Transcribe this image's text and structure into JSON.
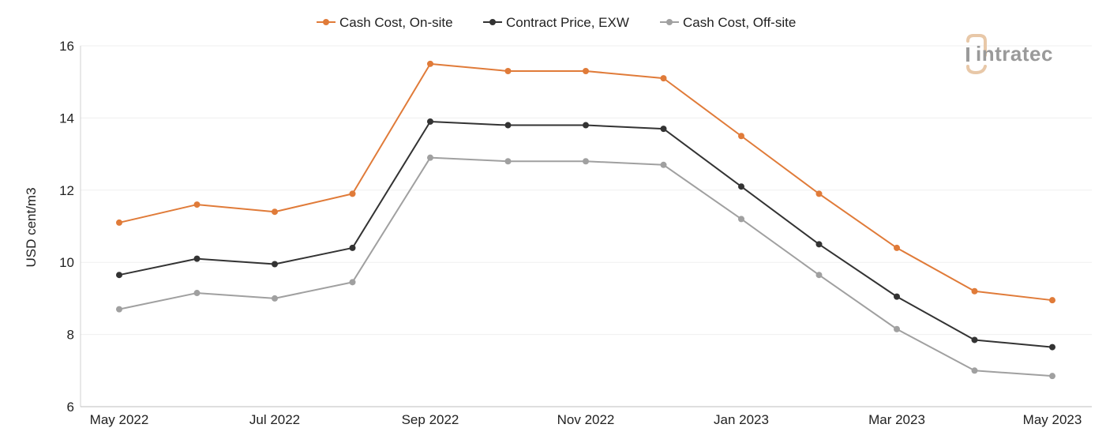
{
  "chart_data": {
    "type": "line",
    "title": "",
    "xlabel": "",
    "ylabel": "USD cent/m3",
    "ylim": [
      6,
      16
    ],
    "yticks": [
      6,
      8,
      10,
      12,
      14,
      16
    ],
    "grid": "horizontal",
    "legend_position": "top-center",
    "x": [
      "May 2022",
      "Jun 2022",
      "Jul 2022",
      "Aug 2022",
      "Sep 2022",
      "Oct 2022",
      "Nov 2022",
      "Dec 2022",
      "Jan 2023",
      "Feb 2023",
      "Mar 2023",
      "Apr 2023",
      "May 2023"
    ],
    "x_tick_labels": [
      "May 2022",
      "",
      "Jul 2022",
      "",
      "Sep 2022",
      "",
      "Nov 2022",
      "",
      "Jan 2023",
      "",
      "Mar 2023",
      "",
      "May 2023"
    ],
    "series": [
      {
        "name": "Cash Cost, On-site",
        "color": "#e07b39",
        "values": [
          11.1,
          11.6,
          11.4,
          11.9,
          15.5,
          15.3,
          15.3,
          15.1,
          13.5,
          11.9,
          10.4,
          9.2,
          8.95
        ]
      },
      {
        "name": "Contract Price, EXW",
        "color": "#333333",
        "values": [
          9.65,
          10.1,
          9.95,
          10.4,
          13.9,
          13.8,
          13.8,
          13.7,
          12.1,
          10.5,
          9.05,
          7.85,
          7.65
        ]
      },
      {
        "name": "Cash Cost, Off-site",
        "color": "#a0a0a0",
        "values": [
          8.7,
          9.15,
          9.0,
          9.45,
          12.9,
          12.8,
          12.8,
          12.7,
          11.2,
          9.65,
          8.15,
          7.0,
          6.85
        ]
      }
    ]
  },
  "logo": {
    "text": "intratec",
    "icon": "intratec-logo-icon",
    "text_color": "#9a9a9a",
    "accent_color": "#e8c8a8"
  }
}
